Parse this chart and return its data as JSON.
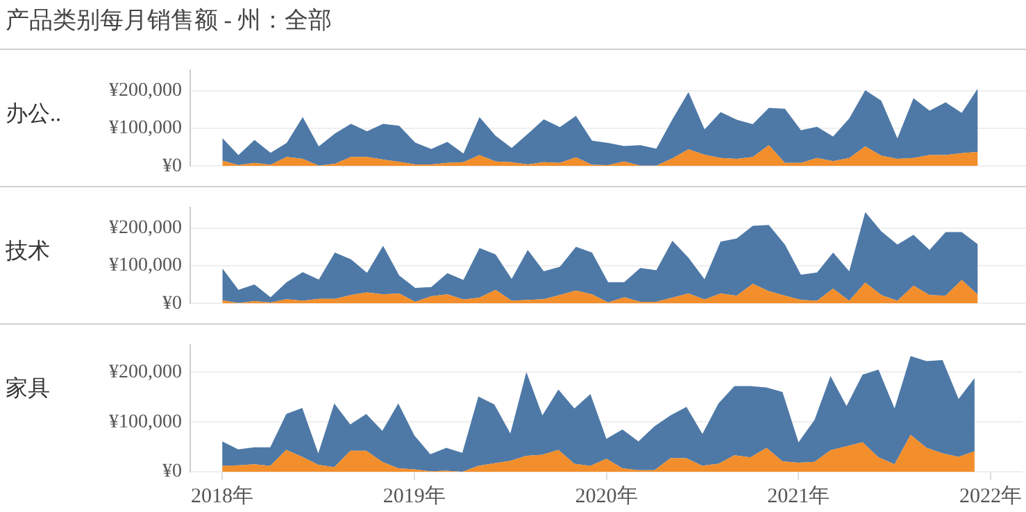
{
  "chart_data": [
    {
      "type": "area",
      "title": "产品类别每月销售额 - 州：全部",
      "ylabel": "办公..",
      "stacked": true,
      "grid": "y",
      "tick_labels": "y",
      "x": [
        "2018-01",
        "2018-02",
        "2018-03",
        "2018-04",
        "2018-05",
        "2018-06",
        "2018-07",
        "2018-08",
        "2018-09",
        "2018-10",
        "2018-11",
        "2018-12",
        "2019-01",
        "2019-02",
        "2019-03",
        "2019-04",
        "2019-05",
        "2019-06",
        "2019-07",
        "2019-08",
        "2019-09",
        "2019-10",
        "2019-11",
        "2019-12",
        "2020-01",
        "2020-02",
        "2020-03",
        "2020-04",
        "2020-05",
        "2020-06",
        "2020-07",
        "2020-08",
        "2020-09",
        "2020-10",
        "2020-11",
        "2020-12",
        "2021-01",
        "2021-02",
        "2021-03",
        "2021-04",
        "2021-05",
        "2021-06",
        "2021-07",
        "2021-08",
        "2021-09",
        "2021-10",
        "2021-11",
        "2021-12"
      ],
      "xlim": [
        "2017-11",
        "2022-03"
      ],
      "ylim": [
        0,
        255000
      ],
      "yticks": [
        {
          "value": 0,
          "label": "¥0"
        },
        {
          "value": 100000,
          "label": "¥100,000"
        },
        {
          "value": 200000,
          "label": "¥200,000"
        }
      ],
      "series": [
        {
          "color": "#f28e2b",
          "values": [
            14000,
            2000,
            8000,
            3000,
            24000,
            19000,
            1000,
            6000,
            24000,
            24000,
            17000,
            11000,
            4000,
            4000,
            8000,
            10000,
            29000,
            12000,
            10000,
            4000,
            10000,
            8000,
            23000,
            3000,
            2000,
            12000,
            1000,
            1000,
            20000,
            44000,
            30000,
            21000,
            19000,
            24000,
            55000,
            8000,
            8000,
            21000,
            13000,
            21000,
            52000,
            27000,
            19000,
            21000,
            29000,
            29000,
            34000,
            37000
          ]
        },
        {
          "color": "#4e79a7",
          "values": [
            60000,
            27000,
            61000,
            32000,
            37000,
            111000,
            51000,
            80000,
            88000,
            68000,
            95000,
            96000,
            58000,
            41000,
            56000,
            23000,
            101000,
            68000,
            38000,
            81000,
            114000,
            95000,
            110000,
            64000,
            59000,
            41000,
            54000,
            45000,
            104000,
            152000,
            67000,
            122000,
            104000,
            87000,
            99000,
            144000,
            87000,
            83000,
            65000,
            105000,
            149000,
            146000,
            54000,
            159000,
            118000,
            140000,
            107000,
            169000
          ]
        }
      ]
    },
    {
      "type": "area",
      "ylabel": "技术",
      "stacked": true,
      "grid": "y",
      "tick_labels": "y",
      "x": [
        "2018-01",
        "2018-02",
        "2018-03",
        "2018-04",
        "2018-05",
        "2018-06",
        "2018-07",
        "2018-08",
        "2018-09",
        "2018-10",
        "2018-11",
        "2018-12",
        "2019-01",
        "2019-02",
        "2019-03",
        "2019-04",
        "2019-05",
        "2019-06",
        "2019-07",
        "2019-08",
        "2019-09",
        "2019-10",
        "2019-11",
        "2019-12",
        "2020-01",
        "2020-02",
        "2020-03",
        "2020-04",
        "2020-05",
        "2020-06",
        "2020-07",
        "2020-08",
        "2020-09",
        "2020-10",
        "2020-11",
        "2020-12",
        "2021-01",
        "2021-02",
        "2021-03",
        "2021-04",
        "2021-05",
        "2021-06",
        "2021-07",
        "2021-08",
        "2021-09",
        "2021-10",
        "2021-11",
        "2021-12"
      ],
      "xlim": [
        "2017-11",
        "2022-03"
      ],
      "ylim": [
        0,
        255000
      ],
      "yticks": [
        {
          "value": 0,
          "label": "¥0"
        },
        {
          "value": 100000,
          "label": "¥100,000"
        },
        {
          "value": 200000,
          "label": "¥200,000"
        }
      ],
      "series": [
        {
          "color": "#f28e2b",
          "values": [
            8000,
            1000,
            6000,
            2000,
            11000,
            7000,
            12000,
            12000,
            22000,
            29000,
            24000,
            26000,
            4000,
            19000,
            24000,
            10000,
            15000,
            36000,
            7000,
            9000,
            11000,
            22000,
            34000,
            24000,
            2000,
            16000,
            4000,
            4000,
            15000,
            26000,
            10000,
            26000,
            20000,
            52000,
            32000,
            20000,
            9000,
            7000,
            39000,
            7000,
            55000,
            22000,
            7000,
            47000,
            22000,
            20000,
            62000,
            23000
          ]
        },
        {
          "color": "#4e79a7",
          "values": [
            85000,
            35000,
            44000,
            14000,
            45000,
            76000,
            51000,
            123000,
            95000,
            52000,
            129000,
            48000,
            37000,
            24000,
            56000,
            52000,
            132000,
            94000,
            58000,
            133000,
            74000,
            75000,
            116000,
            111000,
            54000,
            40000,
            90000,
            84000,
            151000,
            95000,
            54000,
            138000,
            152000,
            154000,
            176000,
            136000,
            67000,
            75000,
            96000,
            78000,
            187000,
            169000,
            149000,
            135000,
            120000,
            169000,
            127000,
            134000
          ]
        }
      ]
    },
    {
      "type": "area",
      "ylabel": "家具",
      "stacked": true,
      "grid": "y",
      "x": [
        "2018-01",
        "2018-02",
        "2018-03",
        "2018-04",
        "2018-05",
        "2018-06",
        "2018-07",
        "2018-08",
        "2018-09",
        "2018-10",
        "2018-11",
        "2018-12",
        "2019-01",
        "2019-02",
        "2019-03",
        "2019-04",
        "2019-05",
        "2019-06",
        "2019-07",
        "2019-08",
        "2019-09",
        "2019-10",
        "2019-11",
        "2019-12",
        "2020-01",
        "2020-02",
        "2020-03",
        "2020-04",
        "2020-05",
        "2020-06",
        "2020-07",
        "2020-08",
        "2020-09",
        "2020-10",
        "2020-11",
        "2020-12",
        "2021-01",
        "2021-02",
        "2021-03",
        "2021-04",
        "2021-05",
        "2021-06",
        "2021-07",
        "2021-08",
        "2021-09",
        "2021-10",
        "2021-11",
        "2021-12"
      ],
      "xlim": [
        "2017-11",
        "2022-03"
      ],
      "xticks": [
        {
          "value": "2018-01",
          "label": "2018年"
        },
        {
          "value": "2019-01",
          "label": "2019年"
        },
        {
          "value": "2020-01",
          "label": "2020年"
        },
        {
          "value": "2021-01",
          "label": "2021年"
        },
        {
          "value": "2022-01",
          "label": "2022年"
        }
      ],
      "ylim": [
        0,
        255000
      ],
      "yticks": [
        {
          "value": 0,
          "label": "¥0"
        },
        {
          "value": 100000,
          "label": "¥100,000"
        },
        {
          "value": 200000,
          "label": "¥200,000"
        }
      ],
      "series": [
        {
          "color": "#f28e2b",
          "values": [
            12000,
            13000,
            15000,
            12000,
            44000,
            30000,
            14000,
            9000,
            42000,
            42000,
            20000,
            7000,
            5000,
            1000,
            2000,
            0,
            12000,
            17000,
            22000,
            32000,
            34000,
            44000,
            16000,
            12000,
            26000,
            7000,
            3000,
            3000,
            27000,
            27000,
            12000,
            16000,
            33000,
            29000,
            48000,
            21000,
            18000,
            20000,
            43000,
            51000,
            59000,
            29000,
            15000,
            74000,
            48000,
            37000,
            30000,
            41000
          ]
        },
        {
          "color": "#4e79a7",
          "values": [
            49000,
            32000,
            34000,
            37000,
            72000,
            98000,
            23000,
            128000,
            53000,
            74000,
            62000,
            130000,
            68000,
            34000,
            46000,
            38000,
            139000,
            118000,
            55000,
            168000,
            79000,
            121000,
            111000,
            144000,
            40000,
            78000,
            58000,
            88000,
            86000,
            103000,
            64000,
            121000,
            139000,
            143000,
            121000,
            139000,
            41000,
            84000,
            149000,
            81000,
            136000,
            176000,
            112000,
            158000,
            174000,
            187000,
            116000,
            147000
          ]
        }
      ]
    }
  ]
}
